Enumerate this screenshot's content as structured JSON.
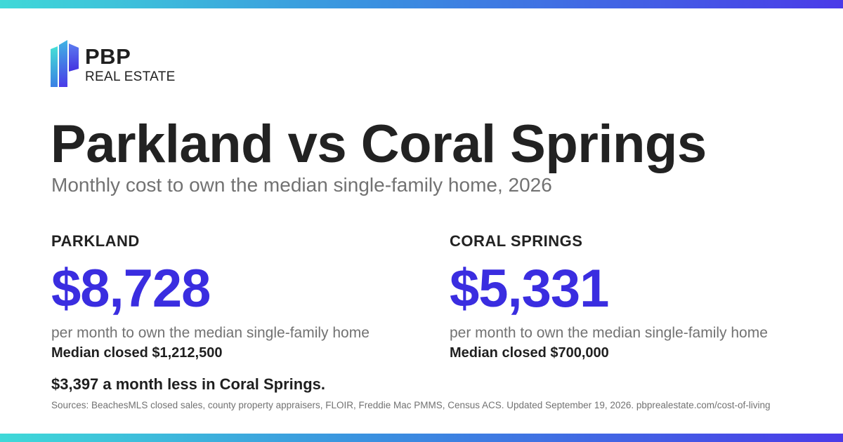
{
  "brand": {
    "name": "PBP",
    "sub": "REAL ESTATE",
    "gradient_start": "#3fd9d8",
    "gradient_end": "#4a3ae8",
    "accent": "#3a2de0"
  },
  "heading": {
    "title": "Parkland vs Coral Springs",
    "subtitle": "Monthly cost to own the median single-family home, 2026"
  },
  "comparison": [
    {
      "city": "PARKLAND",
      "amount": "$8,728",
      "per_month": "per month to own the median single-family home",
      "median": "Median closed $1,212,500"
    },
    {
      "city": "CORAL SPRINGS",
      "amount": "$5,331",
      "per_month": "per month to own the median single-family home",
      "median": "Median closed $700,000"
    }
  ],
  "difference": "$3,397 a month less in Coral Springs.",
  "sources": "Sources: BeachesMLS closed sales, county property appraisers, FLOIR, Freddie Mac PMMS, Census ACS. Updated September 19, 2026. pbprealestate.com/cost-of-living"
}
